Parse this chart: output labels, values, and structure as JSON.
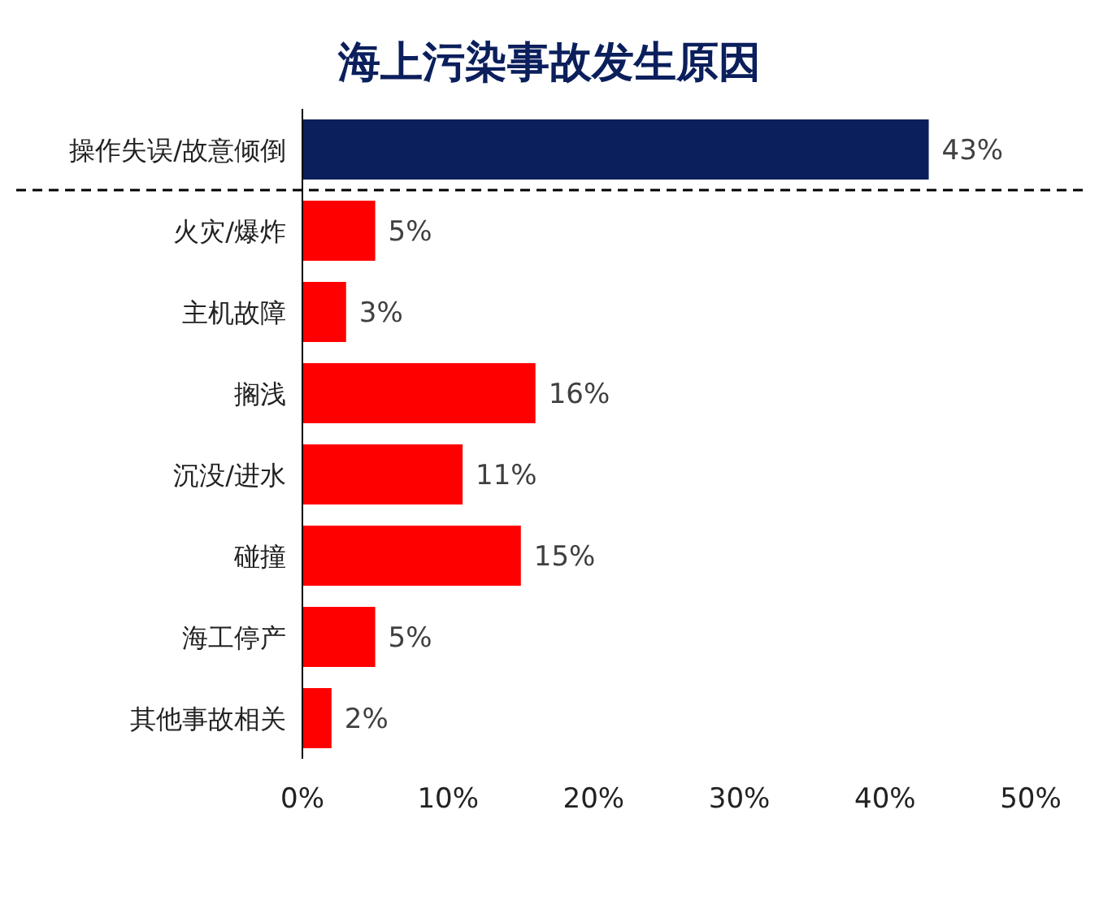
{
  "chart_data": {
    "type": "bar",
    "orientation": "horizontal",
    "title": "海上污染事故发生原因",
    "categories": [
      "操作失误/故意倾倒",
      "火灾/爆炸",
      "主机故障",
      "搁浅",
      "沉没/进水",
      "碰撞",
      "海工停产",
      "其他事故相关"
    ],
    "values": [
      43,
      5,
      3,
      16,
      11,
      15,
      5,
      2
    ],
    "colors": [
      "#0b1f5c",
      "#ff0000",
      "#ff0000",
      "#ff0000",
      "#ff0000",
      "#ff0000",
      "#ff0000",
      "#ff0000"
    ],
    "value_labels": [
      "43%",
      "5%",
      "3%",
      "16%",
      "11%",
      "15%",
      "5%",
      "2%"
    ],
    "xlim": [
      0,
      50
    ],
    "xticks": [
      {
        "value": 0,
        "label": "0%"
      },
      {
        "value": 10,
        "label": "10%"
      },
      {
        "value": 20,
        "label": "20%"
      },
      {
        "value": 30,
        "label": "30%"
      },
      {
        "value": 40,
        "label": "40%"
      },
      {
        "value": 50,
        "label": "50%"
      }
    ]
  }
}
